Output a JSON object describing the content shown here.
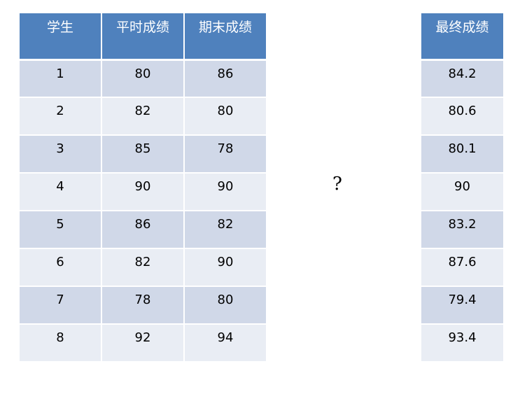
{
  "left_table": {
    "headers": [
      "学生",
      "平时成绩",
      "期末成绩"
    ],
    "rows": [
      [
        "1",
        "80",
        "86"
      ],
      [
        "2",
        "82",
        "80"
      ],
      [
        "3",
        "85",
        "78"
      ],
      [
        "4",
        "90",
        "90"
      ],
      [
        "5",
        "86",
        "82"
      ],
      [
        "6",
        "82",
        "90"
      ],
      [
        "7",
        "78",
        "80"
      ],
      [
        "8",
        "92",
        "94"
      ]
    ]
  },
  "question_mark": "?",
  "right_table": {
    "header": "最终成绩",
    "values": [
      "84.2",
      "80.6",
      "80.1",
      "90",
      "83.2",
      "87.6",
      "79.4",
      "93.4"
    ]
  },
  "colors": {
    "header_bg": "#4f81bd",
    "row_odd_bg": "#d0d8e8",
    "row_even_bg": "#e9edf4"
  }
}
